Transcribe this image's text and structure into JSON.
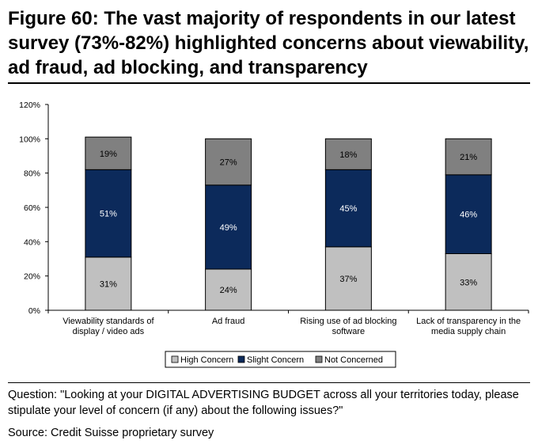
{
  "figure": {
    "title": "Figure 60: The vast majority of respondents in our latest survey (73%-82%) highlighted concerns about viewability, ad fraud, ad blocking, and transparency",
    "question": "Question: \"Looking at your DIGITAL ADVERTISING BUDGET across all your territories today, please stipulate your level of concern (if any) about the following issues?\"",
    "source": "Source: Credit Suisse proprietary survey"
  },
  "chart_data": {
    "type": "bar",
    "stacked": true,
    "categories": [
      [
        "Viewability standards of",
        "display / video ads"
      ],
      [
        "Ad fraud"
      ],
      [
        "Rising use of ad blocking",
        "software"
      ],
      [
        "Lack of transparency in the",
        "media supply chain"
      ]
    ],
    "series": [
      {
        "name": "High Concern",
        "color": "#c0c0c0",
        "label_color": "#000000",
        "values": [
          31,
          24,
          37,
          33
        ]
      },
      {
        "name": "Slight Concern",
        "color": "#0c2a5b",
        "label_color": "#ffffff",
        "values": [
          51,
          49,
          45,
          46
        ]
      },
      {
        "name": "Not Concerned",
        "color": "#808080",
        "label_color": "#000000",
        "values": [
          19,
          27,
          18,
          21
        ]
      }
    ],
    "value_suffix": "%",
    "ylim": [
      0,
      120
    ],
    "yticks": [
      0,
      20,
      40,
      60,
      80,
      100,
      120
    ],
    "ytick_labels": [
      "0%",
      "20%",
      "40%",
      "60%",
      "80%",
      "100%",
      "120%"
    ],
    "grid": false,
    "legend_position": "bottom"
  }
}
